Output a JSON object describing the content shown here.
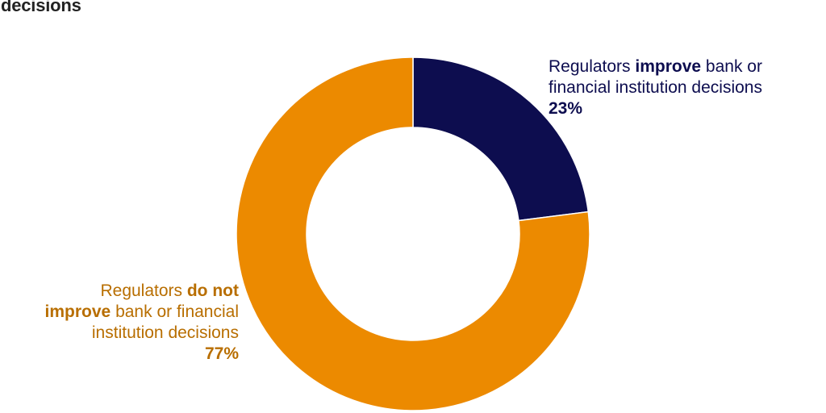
{
  "title": "decisions",
  "colors": {
    "improve": "#0d0d4f",
    "not_improve": "#ec8a00",
    "not_improve_text": "#b86e00"
  },
  "labels": {
    "improve": {
      "prefix": "Regulators ",
      "bold": "improve",
      "suffix": " bank or",
      "line2": "financial institution decisions",
      "value": "23%"
    },
    "not_improve": {
      "prefix": "Regulators ",
      "bold1": "do not",
      "bold2": "improve",
      "suffix": " bank or financial",
      "line3": "institution decisions",
      "value": "77%"
    }
  },
  "chart_data": {
    "type": "pie",
    "variant": "donut",
    "title": "decisions",
    "categories": [
      "Regulators improve bank or financial institution decisions",
      "Regulators do not improve bank or financial institution decisions"
    ],
    "values": [
      23,
      77
    ],
    "unit": "%",
    "colors": [
      "#0d0d4f",
      "#ec8a00"
    ]
  }
}
